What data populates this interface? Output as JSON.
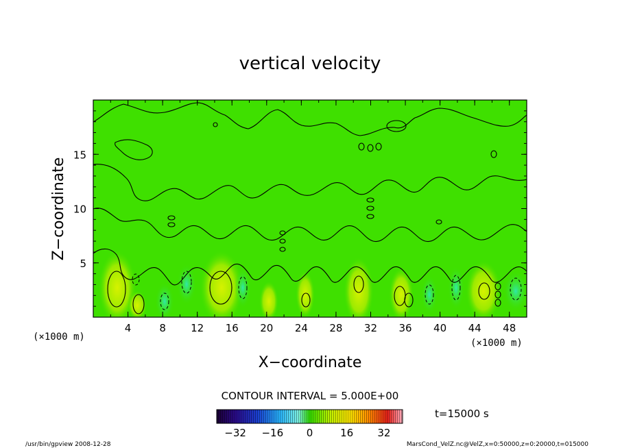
{
  "chart_data": {
    "type": "heatmap",
    "title": "vertical velocity",
    "xlabel": "X−coordinate",
    "ylabel": "Z−coordinate",
    "x_unit_left": "(×1000 m)",
    "x_unit_right": "(×1000 m)",
    "xlim": [
      0,
      50
    ],
    "ylim": [
      0,
      20
    ],
    "x_ticks": [
      4,
      8,
      12,
      16,
      20,
      24,
      28,
      32,
      36,
      40,
      44,
      48
    ],
    "y_ticks": [
      5,
      10,
      15
    ],
    "contour_interval_label": "CONTOUR INTERVAL = 5.000E+00",
    "time_label": "t=15000 s",
    "colorbar": {
      "range": [
        -40,
        40
      ],
      "ticks": [
        -32,
        -16,
        0,
        16,
        32
      ],
      "colormap": [
        "#1a0033",
        "#2a0a8a",
        "#1a3fd0",
        "#27b6ff",
        "#7ef0e0",
        "#33e000",
        "#c8f000",
        "#ffe400",
        "#ff8800",
        "#e8201a",
        "#ffb0c0"
      ]
    },
    "field_colors": {
      "background": "#3fe000",
      "updraft": "#b8f000",
      "downdraft": "#38e890"
    }
  },
  "footer": {
    "left": "/usr/bin/gpview  2008-12-28",
    "right": "MarsCond_VelZ.nc@VelZ,x=0:50000,z=0:20000,t=015000"
  }
}
